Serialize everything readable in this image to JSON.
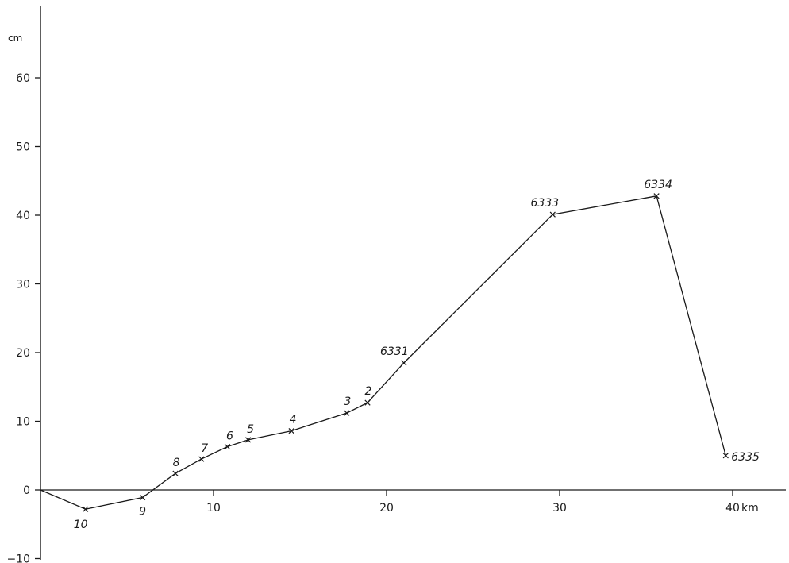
{
  "chart_data": {
    "type": "line",
    "title": "",
    "xlabel": "",
    "ylabel": "",
    "x_unit": "km",
    "y_unit": "cm",
    "xlim": [
      -0.3,
      43.5
    ],
    "ylim": [
      -11,
      73
    ],
    "x_ticks": [
      10,
      20,
      30,
      40
    ],
    "y_ticks": [
      -10,
      0,
      10,
      20,
      30,
      40,
      50,
      60
    ],
    "grid": false,
    "legend": "none",
    "series": [
      {
        "points": [
          {
            "x": 0.0,
            "y": 0.0,
            "label": ""
          },
          {
            "x": 2.6,
            "y": -2.8,
            "label": "10"
          },
          {
            "x": 5.9,
            "y": -1.1,
            "label": "9"
          },
          {
            "x": 7.8,
            "y": 2.4,
            "label": "8"
          },
          {
            "x": 9.3,
            "y": 4.5,
            "label": "7"
          },
          {
            "x": 10.8,
            "y": 6.3,
            "label": "6"
          },
          {
            "x": 12.0,
            "y": 7.3,
            "label": "5"
          },
          {
            "x": 14.5,
            "y": 8.6,
            "label": "4"
          },
          {
            "x": 17.7,
            "y": 11.2,
            "label": "3"
          },
          {
            "x": 18.9,
            "y": 12.7,
            "label": "2"
          },
          {
            "x": 21.0,
            "y": 18.5,
            "label": "6331"
          },
          {
            "x": 29.6,
            "y": 40.1,
            "label": "6333"
          },
          {
            "x": 35.6,
            "y": 42.8,
            "label": "6334"
          },
          {
            "x": 39.6,
            "y": 5.0,
            "label": "6335"
          }
        ]
      }
    ]
  }
}
